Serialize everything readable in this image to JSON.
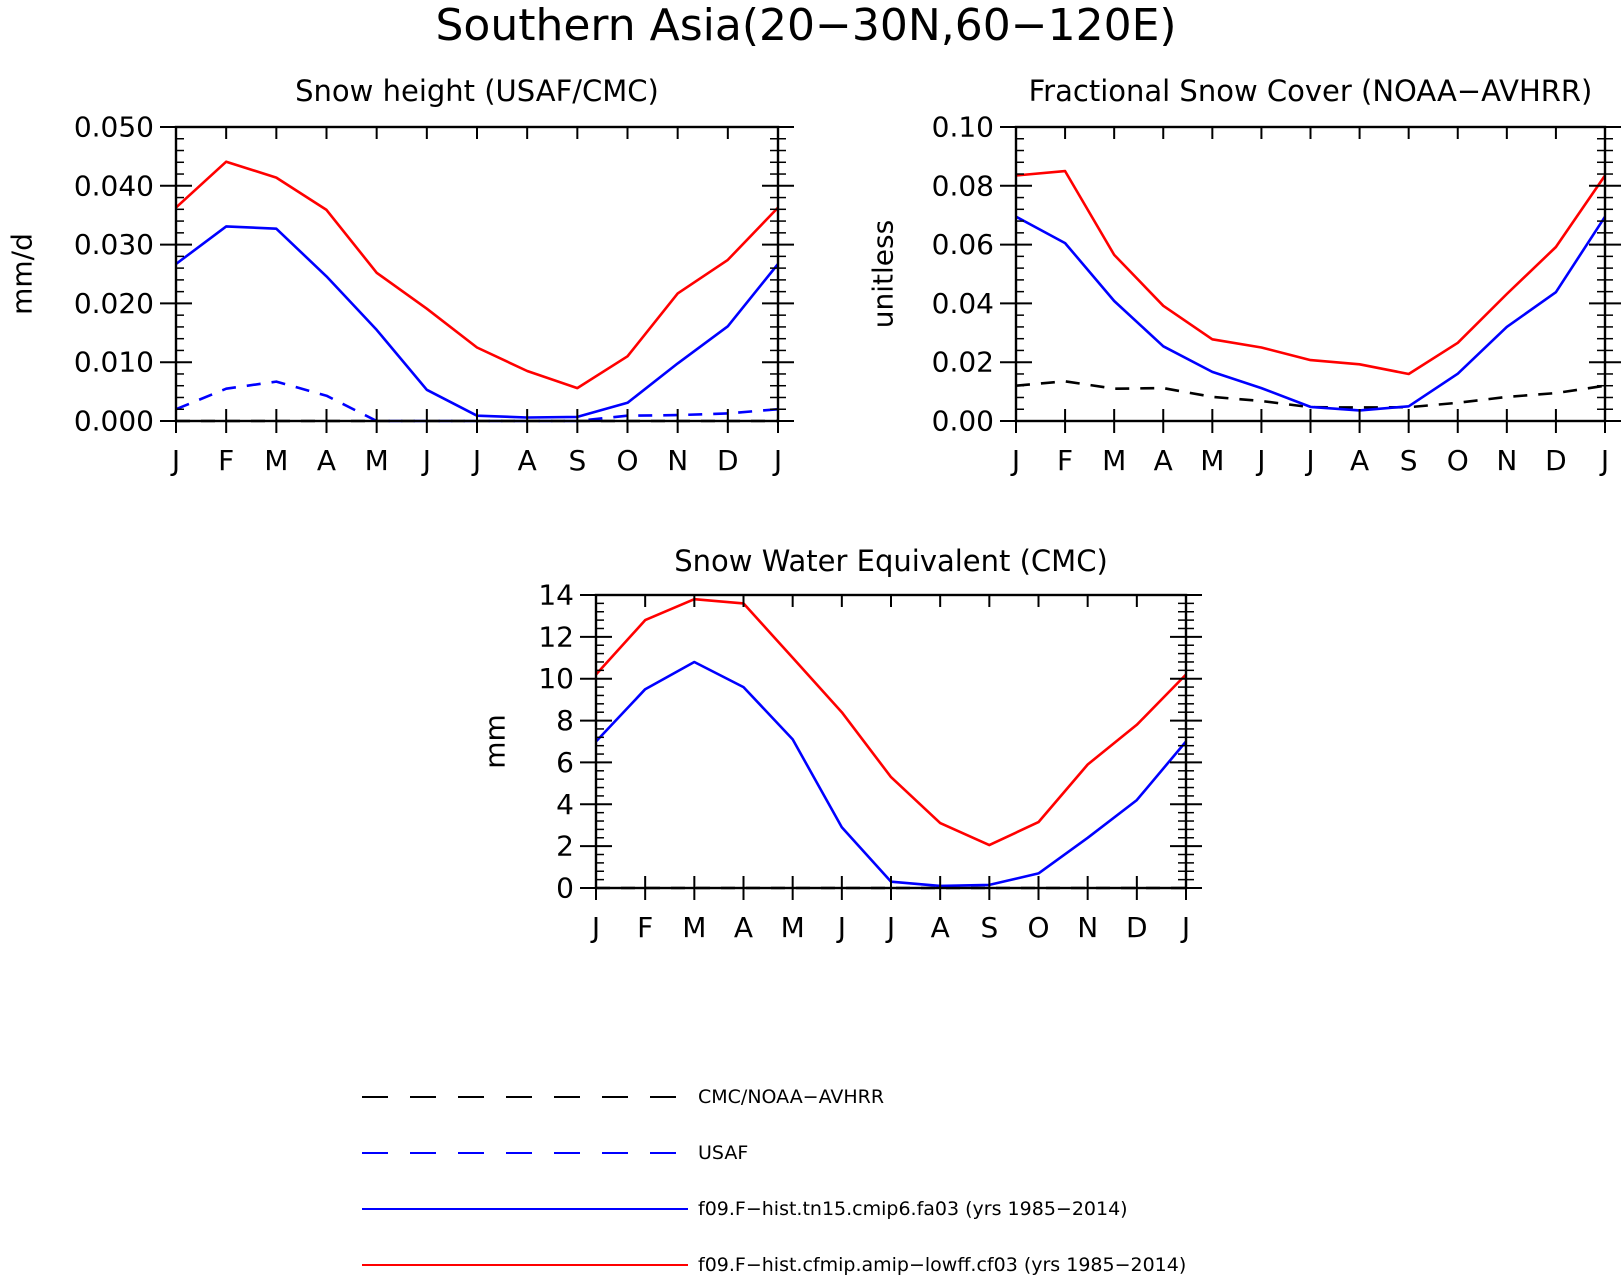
{
  "title": "Southern Asia(20−30N,60−120E)",
  "months": [
    "J",
    "F",
    "M",
    "A",
    "M",
    "J",
    "J",
    "A",
    "S",
    "O",
    "N",
    "D",
    "J"
  ],
  "colors": {
    "model_fa03": "#0000ff",
    "model_cf03": "#ff0000",
    "obs_black": "#000000",
    "obs_usaf": "#0000ff"
  },
  "legend": [
    {
      "label": "CMC/NOAA−AVHRR",
      "color": "#000000",
      "dash": true
    },
    {
      "label": "USAF",
      "color": "#0000ff",
      "dash": true
    },
    {
      "label": "f09.F−hist.tn15.cmip6.fa03 (yrs 1985−2014)",
      "color": "#0000ff",
      "dash": false
    },
    {
      "label": "f09.F−hist.cfmip.amip−lowff.cf03 (yrs 1985−2014)",
      "color": "#ff0000",
      "dash": false
    }
  ],
  "chart_data": [
    {
      "type": "line",
      "title": "Snow height (USAF/CMC)",
      "ylabel": "mm/d",
      "ylim": [
        0,
        0.05
      ],
      "yticks": [
        "0.000",
        "0.010",
        "0.020",
        "0.030",
        "0.040",
        "0.050"
      ],
      "x": [
        "J",
        "F",
        "M",
        "A",
        "M",
        "J",
        "J",
        "A",
        "S",
        "O",
        "N",
        "D",
        "J"
      ],
      "series": [
        {
          "name": "CMC/NOAA−AVHRR",
          "color": "#000000",
          "dash": true,
          "values": [
            0,
            0,
            0,
            0,
            0,
            0,
            0,
            0,
            0,
            0,
            0,
            0,
            0
          ]
        },
        {
          "name": "USAF",
          "color": "#0000ff",
          "dash": true,
          "values": [
            0.002,
            0.0055,
            0.0067,
            0.0043,
            0.0,
            0.0,
            0.0,
            0.0,
            0.0,
            0.0009,
            0.001,
            0.0013,
            0.002
          ]
        },
        {
          "name": "f09.F−hist.tn15.cmip6.fa03 (yrs 1985−2014)",
          "color": "#0000ff",
          "dash": false,
          "values": [
            0.0267,
            0.0331,
            0.0327,
            0.0246,
            0.0155,
            0.0053,
            0.0009,
            0.0006,
            0.0007,
            0.0031,
            0.0098,
            0.0161,
            0.0267
          ]
        },
        {
          "name": "f09.F−hist.cfmip.amip−lowff.cf03 (yrs 1985−2014)",
          "color": "#ff0000",
          "dash": false,
          "values": [
            0.0363,
            0.0441,
            0.0414,
            0.0359,
            0.0252,
            0.0191,
            0.0125,
            0.0085,
            0.0056,
            0.011,
            0.0217,
            0.0274,
            0.0363
          ]
        }
      ]
    },
    {
      "type": "line",
      "title": "Fractional Snow Cover (NOAA−AVHRR)",
      "ylabel": "unitless",
      "ylim": [
        0,
        0.1
      ],
      "yticks": [
        "0.00",
        "0.02",
        "0.04",
        "0.06",
        "0.08",
        "0.10"
      ],
      "x": [
        "J",
        "F",
        "M",
        "A",
        "M",
        "J",
        "J",
        "A",
        "S",
        "O",
        "N",
        "D",
        "J"
      ],
      "series": [
        {
          "name": "CMC/NOAA−AVHRR",
          "color": "#000000",
          "dash": true,
          "values": [
            0.012,
            0.0135,
            0.011,
            0.0112,
            0.0082,
            0.0068,
            0.0047,
            0.0046,
            0.0047,
            0.0062,
            0.0082,
            0.0095,
            0.012
          ]
        },
        {
          "name": "f09.F−hist.tn15.cmip6.fa03 (yrs 1985−2014)",
          "color": "#0000ff",
          "dash": false,
          "values": [
            0.0695,
            0.0605,
            0.0408,
            0.0254,
            0.0167,
            0.0112,
            0.0048,
            0.0036,
            0.005,
            0.0161,
            0.032,
            0.0438,
            0.0695
          ]
        },
        {
          "name": "f09.F−hist.cfmip.amip−lowff.cf03 (yrs 1985−2014)",
          "color": "#ff0000",
          "dash": false,
          "values": [
            0.0835,
            0.085,
            0.0565,
            0.0392,
            0.0278,
            0.025,
            0.0207,
            0.0193,
            0.016,
            0.0266,
            0.0432,
            0.0592,
            0.0835
          ]
        }
      ]
    },
    {
      "type": "line",
      "title": "Snow Water Equivalent (CMC)",
      "ylabel": "mm",
      "ylim": [
        0,
        14
      ],
      "yticks": [
        "0",
        "2",
        "4",
        "6",
        "8",
        "10",
        "12",
        "14"
      ],
      "x": [
        "J",
        "F",
        "M",
        "A",
        "M",
        "J",
        "J",
        "A",
        "S",
        "O",
        "N",
        "D",
        "J"
      ],
      "series": [
        {
          "name": "CMC/NOAA−AVHRR",
          "color": "#000000",
          "dash": true,
          "values": [
            0,
            0,
            0,
            0,
            0,
            0,
            0,
            0,
            0,
            0,
            0,
            0,
            0
          ]
        },
        {
          "name": "f09.F−hist.tn15.cmip6.fa03 (yrs 1985−2014)",
          "color": "#0000ff",
          "dash": false,
          "values": [
            7.0,
            9.5,
            10.8,
            9.6,
            7.1,
            2.9,
            0.3,
            0.1,
            0.15,
            0.7,
            2.4,
            4.2,
            7.0
          ]
        },
        {
          "name": "f09.F−hist.cfmip.amip−lowff.cf03 (yrs 1985−2014)",
          "color": "#ff0000",
          "dash": false,
          "values": [
            10.2,
            12.8,
            13.8,
            13.6,
            11.0,
            8.4,
            5.3,
            3.1,
            2.05,
            3.15,
            5.9,
            7.8,
            10.2
          ]
        }
      ]
    }
  ]
}
